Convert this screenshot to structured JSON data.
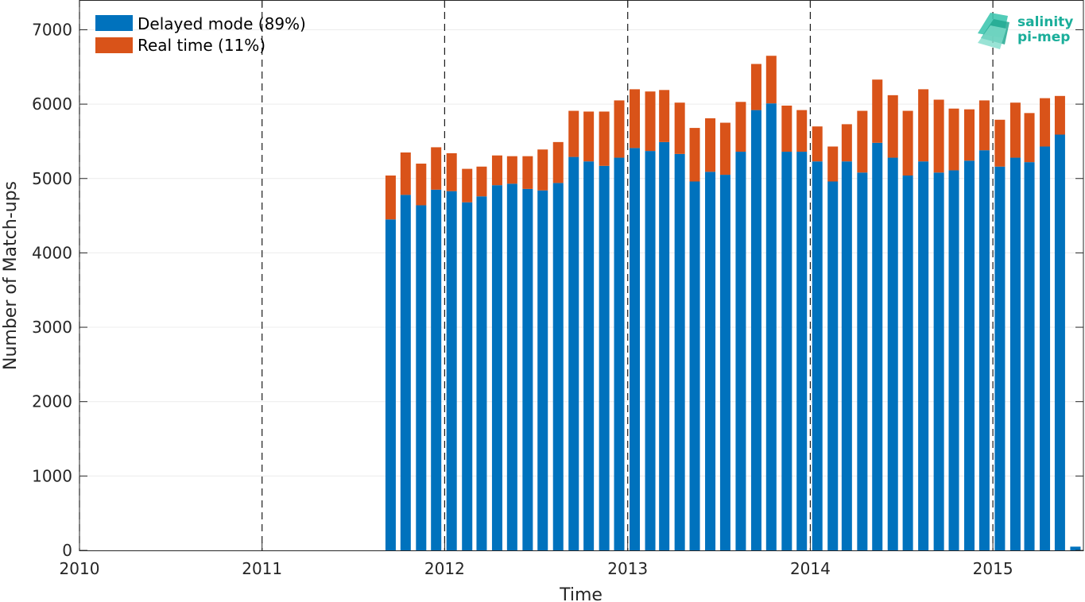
{
  "chart_data": {
    "type": "bar",
    "stacked": true,
    "xlabel": "Time",
    "ylabel": "Number of Match-ups",
    "xlim": [
      "2010-01-01",
      "2015-07-01"
    ],
    "ylim": [
      0,
      7400
    ],
    "x_ticks": [
      "2010",
      "2011",
      "2012",
      "2013",
      "2014",
      "2015"
    ],
    "y_ticks": [
      0,
      1000,
      2000,
      3000,
      4000,
      5000,
      6000,
      7000
    ],
    "grid": true,
    "year_boundary_lines": [
      "2010-01-01",
      "2011-01-01",
      "2012-01-01",
      "2013-01-01",
      "2014-01-01",
      "2015-01-01"
    ],
    "legend_position": "top-left",
    "categories": [
      "2011-09",
      "2011-10",
      "2011-11",
      "2011-12",
      "2012-01",
      "2012-02",
      "2012-03",
      "2012-04",
      "2012-05",
      "2012-06",
      "2012-07",
      "2012-08",
      "2012-09",
      "2012-10",
      "2012-11",
      "2012-12",
      "2013-01",
      "2013-02",
      "2013-03",
      "2013-04",
      "2013-05",
      "2013-06",
      "2013-07",
      "2013-08",
      "2013-09",
      "2013-10",
      "2013-11",
      "2013-12",
      "2014-01",
      "2014-02",
      "2014-03",
      "2014-04",
      "2014-05",
      "2014-06",
      "2014-07",
      "2014-08",
      "2014-09",
      "2014-10",
      "2014-11",
      "2014-12",
      "2015-01",
      "2015-02",
      "2015-03",
      "2015-04",
      "2015-05",
      "2015-06"
    ],
    "series": [
      {
        "name": "Delayed mode (89%)",
        "color": "#0072BD",
        "values": [
          4450,
          4780,
          4640,
          4850,
          4830,
          4680,
          4760,
          4910,
          4930,
          4860,
          4840,
          4940,
          5290,
          5230,
          5170,
          5280,
          5410,
          5370,
          5490,
          5330,
          4960,
          5090,
          5050,
          5360,
          5920,
          6010,
          5360,
          5360,
          5230,
          4960,
          5230,
          5080,
          5480,
          5280,
          5040,
          5230,
          5080,
          5110,
          5240,
          5380,
          5160,
          5280,
          5220,
          5430,
          5590,
          50
        ]
      },
      {
        "name": "Real time (11%)",
        "color": "#D95319",
        "values": [
          590,
          570,
          560,
          570,
          510,
          450,
          400,
          400,
          370,
          440,
          550,
          550,
          620,
          670,
          730,
          770,
          790,
          800,
          700,
          690,
          720,
          720,
          700,
          670,
          620,
          640,
          620,
          560,
          470,
          470,
          500,
          830,
          850,
          840,
          870,
          970,
          980,
          830,
          690,
          670,
          630,
          740,
          660,
          650,
          520,
          0
        ]
      }
    ]
  },
  "logo": {
    "line1": "salinity",
    "line2": "pi-mep",
    "color": "#1AAE9A"
  }
}
